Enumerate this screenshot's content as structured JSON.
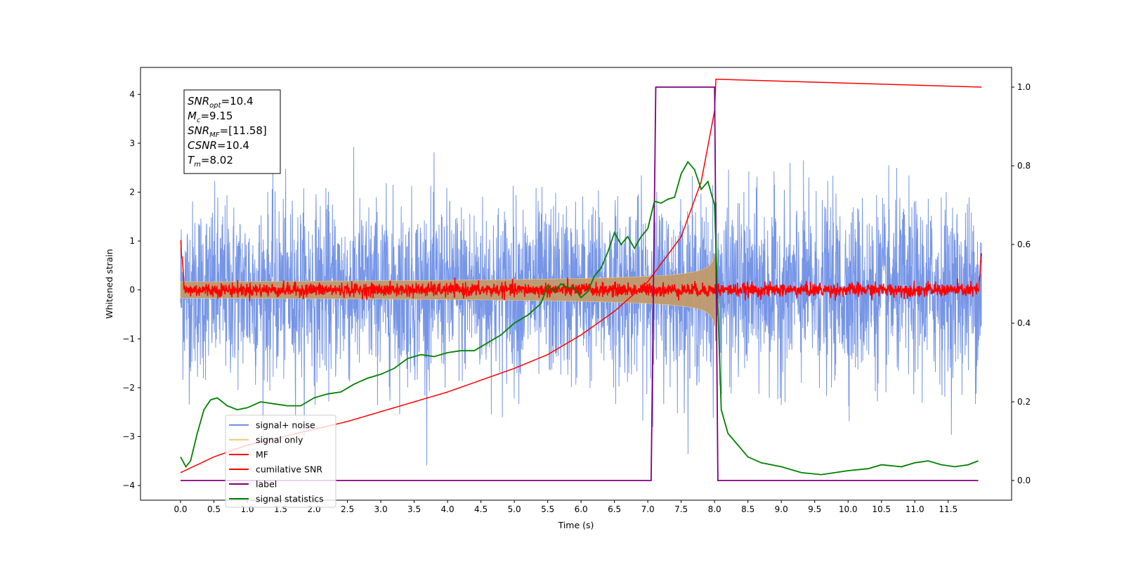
{
  "chart_data": {
    "type": "line",
    "title": "",
    "xlabel": "Time (s)",
    "ylabel": "Whitened strain",
    "xlim": [
      -0.6,
      12.45
    ],
    "ylim": [
      -4.3,
      4.55
    ],
    "y2lim": [
      -0.05,
      1.05
    ],
    "xticks": [
      "0.0",
      "0.5",
      "1.0",
      "1.5",
      "2.0",
      "2.5",
      "3.0",
      "3.5",
      "4.0",
      "4.5",
      "5.0",
      "5.5",
      "6.0",
      "6.5",
      "7.0",
      "7.5",
      "8.0",
      "8.5",
      "9.0",
      "9.5",
      "10.0",
      "10.5",
      "11.0",
      "11.5"
    ],
    "yticks": [
      "−4",
      "−3",
      "−2",
      "−1",
      "0",
      "1",
      "2",
      "3",
      "4"
    ],
    "y2ticks": [
      "0.0",
      "0.2",
      "0.4",
      "0.6",
      "0.8",
      "1.0"
    ],
    "grid": false,
    "legend_position": "lower-left",
    "annotation": {
      "lines": [
        {
          "main": "SNR",
          "sub": "opt",
          "rest": "=10.4"
        },
        {
          "main": "M",
          "sub": "c",
          "rest": "=9.15"
        },
        {
          "main": "SNR",
          "sub": "MF",
          "rest": "=[11.58]"
        },
        {
          "main": "CSNR",
          "sub": "",
          "rest": "=10.4"
        },
        {
          "main": "T",
          "sub": "m",
          "rest": "=8.02"
        }
      ]
    },
    "series": [
      {
        "name": "signal+ noise",
        "axis": "left",
        "color": "#6f8fe6",
        "kind": "noise",
        "sigma": 0.85,
        "t_start": 0.0,
        "t_end": 12.0
      },
      {
        "name": "signal only",
        "axis": "left",
        "color": "#f5c97a",
        "kind": "chirp",
        "t_end": 8.02,
        "amplitude_end": 0.75
      },
      {
        "name": "MF",
        "axis": "left",
        "color": "#ff0000",
        "kind": "mf",
        "sigma": 0.07
      },
      {
        "name": "cumilative SNR",
        "axis": "right",
        "color": "#ff0000",
        "x": [
          0.0,
          0.5,
          1.0,
          1.5,
          2.0,
          2.5,
          3.0,
          3.5,
          4.0,
          4.5,
          5.0,
          5.5,
          6.0,
          6.5,
          7.0,
          7.5,
          7.8,
          8.0,
          8.02,
          12.0
        ],
        "y": [
          0.0,
          0.04,
          0.07,
          0.09,
          0.11,
          0.13,
          0.155,
          0.18,
          0.205,
          0.235,
          0.265,
          0.3,
          0.35,
          0.41,
          0.485,
          0.6,
          0.74,
          0.92,
          1.0,
          1.0
        ]
      },
      {
        "name": "label",
        "axis": "right",
        "color": "#800080",
        "x": [
          0.0,
          7.05,
          7.12,
          8.0,
          8.05,
          11.95
        ],
        "y": [
          0.0,
          0.0,
          1.0,
          1.0,
          0.0,
          0.0
        ]
      },
      {
        "name": "signal statistics",
        "axis": "right",
        "color": "#008000",
        "x": [
          0.0,
          0.08,
          0.15,
          0.25,
          0.35,
          0.45,
          0.55,
          0.7,
          0.85,
          1.0,
          1.2,
          1.4,
          1.6,
          1.8,
          2.0,
          2.2,
          2.4,
          2.6,
          2.8,
          3.0,
          3.2,
          3.4,
          3.6,
          3.8,
          4.0,
          4.2,
          4.4,
          4.6,
          4.8,
          5.0,
          5.2,
          5.4,
          5.5,
          5.6,
          5.7,
          5.8,
          5.9,
          6.0,
          6.1,
          6.2,
          6.3,
          6.4,
          6.5,
          6.6,
          6.7,
          6.8,
          6.9,
          7.0,
          7.1,
          7.2,
          7.3,
          7.4,
          7.5,
          7.6,
          7.7,
          7.8,
          7.9,
          8.0,
          8.1,
          8.2,
          8.3,
          8.5,
          8.7,
          9.0,
          9.3,
          9.6,
          10.0,
          10.3,
          10.5,
          10.8,
          11.0,
          11.2,
          11.4,
          11.6,
          11.8,
          11.95
        ],
        "y": [
          0.06,
          0.035,
          0.05,
          0.12,
          0.18,
          0.205,
          0.21,
          0.19,
          0.18,
          0.185,
          0.2,
          0.195,
          0.19,
          0.19,
          0.21,
          0.22,
          0.225,
          0.245,
          0.26,
          0.27,
          0.285,
          0.31,
          0.32,
          0.315,
          0.325,
          0.33,
          0.33,
          0.35,
          0.37,
          0.4,
          0.42,
          0.45,
          0.495,
          0.48,
          0.5,
          0.49,
          0.49,
          0.465,
          0.48,
          0.52,
          0.54,
          0.58,
          0.63,
          0.6,
          0.62,
          0.59,
          0.62,
          0.64,
          0.71,
          0.705,
          0.715,
          0.72,
          0.78,
          0.81,
          0.79,
          0.74,
          0.76,
          0.7,
          0.18,
          0.12,
          0.1,
          0.06,
          0.045,
          0.035,
          0.02,
          0.015,
          0.025,
          0.03,
          0.04,
          0.035,
          0.045,
          0.05,
          0.04,
          0.035,
          0.04,
          0.05
        ]
      }
    ]
  }
}
